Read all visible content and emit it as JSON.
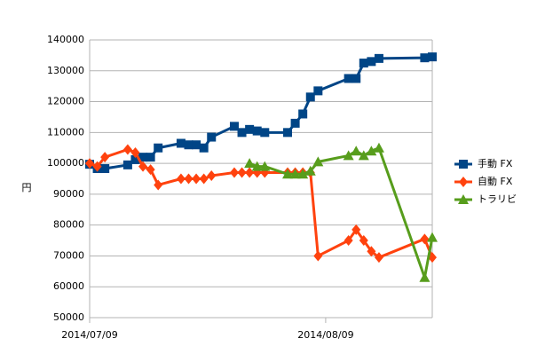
{
  "chart_data": {
    "type": "line",
    "y_label": "円",
    "x": [
      "2014/07/09",
      "2014/07/10",
      "2014/07/11",
      "2014/07/14",
      "2014/07/15",
      "2014/07/16",
      "2014/07/17",
      "2014/07/18",
      "2014/07/21",
      "2014/07/22",
      "2014/07/23",
      "2014/07/24",
      "2014/07/25",
      "2014/07/28",
      "2014/07/29",
      "2014/07/30",
      "2014/07/31",
      "2014/08/01",
      "2014/08/04",
      "2014/08/05",
      "2014/08/06",
      "2014/08/07",
      "2014/08/08",
      "2014/08/12",
      "2014/08/13",
      "2014/08/14",
      "2014/08/15",
      "2014/08/16",
      "2014/08/22",
      "2014/08/23"
    ],
    "series": [
      {
        "name": "手動 FX",
        "color": "#004586",
        "marker": "square",
        "values": [
          99700,
          98300,
          98300,
          99500,
          101200,
          102000,
          102000,
          105000,
          106500,
          106000,
          106000,
          105000,
          108500,
          112000,
          110000,
          111000,
          110500,
          110000,
          110000,
          113000,
          116000,
          121500,
          123500,
          127500,
          127500,
          132500,
          133000,
          134000,
          134200,
          134500
        ]
      },
      {
        "name": "自動 FX",
        "color": "#ff420e",
        "marker": "diamond",
        "values": [
          100000,
          99000,
          102000,
          104500,
          103500,
          99000,
          98000,
          93000,
          95000,
          95000,
          95000,
          95000,
          96000,
          97000,
          97000,
          97000,
          97000,
          97000,
          97000,
          97000,
          97000,
          97000,
          70000,
          75000,
          78500,
          75000,
          71500,
          69500,
          75500,
          69500
        ]
      },
      {
        "name": "トラリビ",
        "color": "#579d1c",
        "marker": "triangle",
        "values": [
          null,
          null,
          null,
          null,
          null,
          null,
          null,
          null,
          null,
          null,
          null,
          null,
          null,
          null,
          null,
          100000,
          99000,
          99000,
          96500,
          96500,
          96500,
          97500,
          100500,
          102500,
          104000,
          102500,
          104000,
          105000,
          63000,
          76000
        ]
      }
    ],
    "xlim": [
      "2014/07/09",
      "2014/08/23"
    ],
    "xticks": [
      "2014/07/09",
      "2014/08/09"
    ],
    "ylim": [
      50000,
      140000
    ],
    "yticks": [
      50000,
      60000,
      70000,
      80000,
      90000,
      100000,
      110000,
      120000,
      130000,
      140000
    ],
    "grid": true,
    "legend": "right"
  }
}
